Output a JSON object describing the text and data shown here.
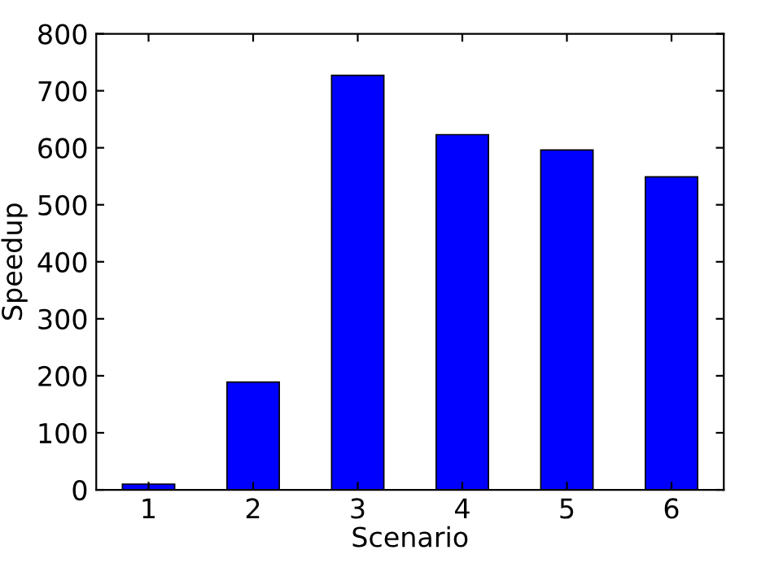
{
  "chart_data": {
    "type": "bar",
    "xlabel": "Scenario",
    "ylabel": "Speedup",
    "categories": [
      "1",
      "2",
      "3",
      "4",
      "5",
      "6"
    ],
    "values": [
      10,
      189,
      727,
      623,
      596,
      549
    ],
    "color": "#0000ff",
    "ylim": [
      0,
      800
    ],
    "yticks": [
      0,
      100,
      200,
      300,
      400,
      500,
      600,
      700,
      800
    ],
    "grid": false
  }
}
